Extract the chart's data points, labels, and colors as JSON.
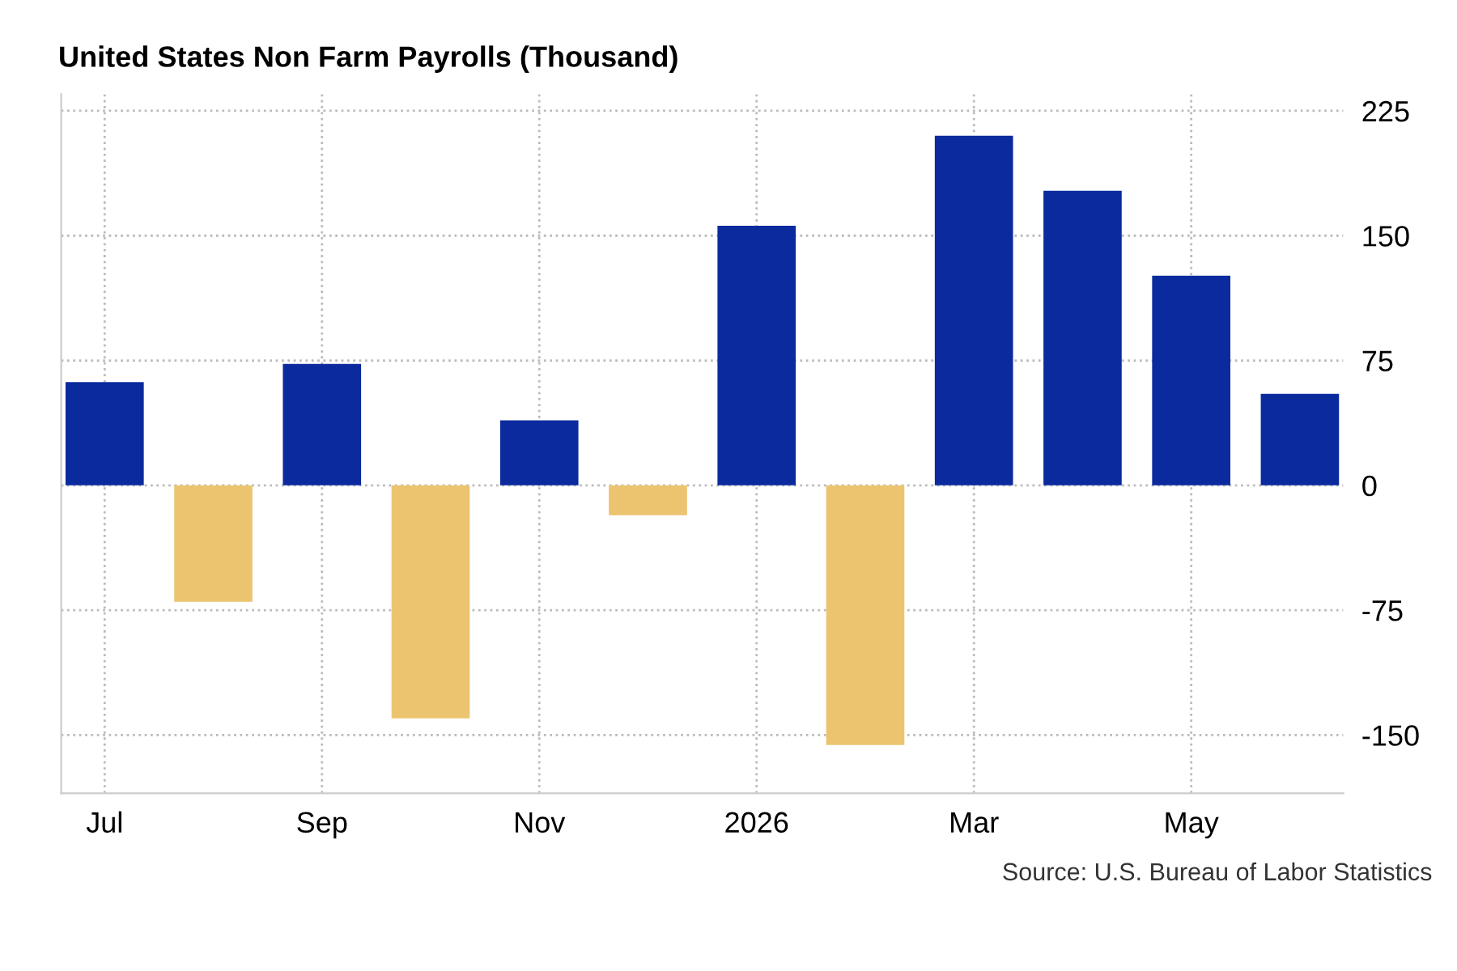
{
  "chart_data": {
    "type": "bar",
    "title": "United States Non Farm Payrolls (Thousand)",
    "categories": [
      "Jul",
      null,
      "Sep",
      null,
      "Nov",
      null,
      "2026",
      null,
      "Mar",
      null,
      "May",
      null
    ],
    "values": [
      62,
      -70,
      73,
      -140,
      39,
      -18,
      156,
      -156,
      210,
      177,
      126,
      55
    ],
    "colors": [
      "#0b2a9e",
      "#ecc470",
      "#0b2a9e",
      "#ecc470",
      "#0b2a9e",
      "#ecc470",
      "#0b2a9e",
      "#ecc470",
      "#0b2a9e",
      "#0b2a9e",
      "#0b2a9e",
      "#0b2a9e"
    ],
    "ylim": [
      -185,
      235
    ],
    "yticks": [
      -150,
      -75,
      0,
      75,
      150,
      225
    ],
    "grid": true,
    "legend": false,
    "annotations": [
      "Source: U.S. Bureau of Labor Statistics"
    ]
  }
}
